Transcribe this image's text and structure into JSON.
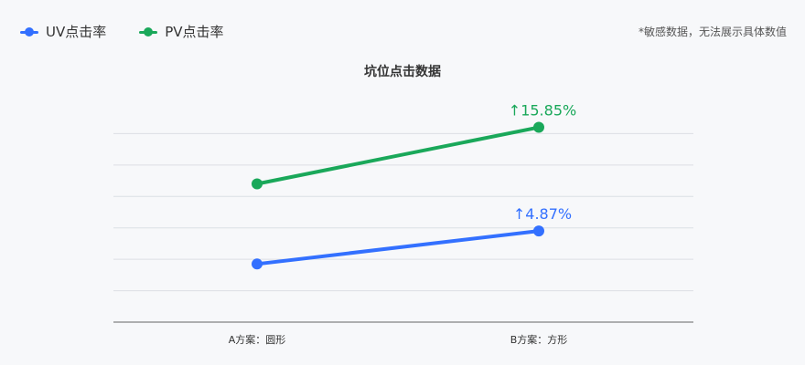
{
  "legend": {
    "items": [
      {
        "label": "UV点击率",
        "color": "#3370ff"
      },
      {
        "label": "PV点击率",
        "color": "#1aa85a"
      }
    ]
  },
  "note": "*敏感数据，无法展示具体数值",
  "chart_data": {
    "type": "line",
    "title": "坑位点击数据",
    "categories": [
      "A方案：圆形",
      "B方案：方形"
    ],
    "grid": true,
    "series": [
      {
        "name": "UV点击率",
        "color": "#3370ff",
        "values": [
          1.85,
          2.9
        ],
        "change_label": "↑4.87%"
      },
      {
        "name": "PV点击率",
        "color": "#1aa85a",
        "values": [
          4.4,
          6.2
        ],
        "change_label": "↑15.85%"
      }
    ],
    "ylim": [
      0,
      7
    ]
  }
}
